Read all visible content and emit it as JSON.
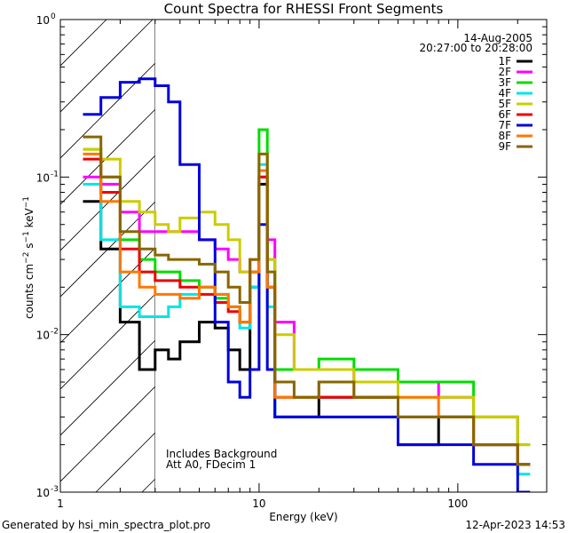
{
  "chart_data": {
    "type": "line",
    "title": "Count Spectra for RHESSI Front Segments",
    "xlabel": "Energy (keV)",
    "ylabel_parts": [
      "counts cm",
      "−2",
      " s",
      "−1",
      " keV",
      "−1"
    ],
    "x_scale": "log",
    "y_scale": "log",
    "xlim": [
      1,
      280
    ],
    "ylim": [
      0.001,
      1
    ],
    "x_tick_labels": [
      "1",
      "10",
      "100"
    ],
    "y_tick_labels": [
      {
        "mantissa": "10",
        "exponent": "0",
        "value": 1
      },
      {
        "mantissa": "10",
        "exponent": "-1",
        "value": 0.1
      },
      {
        "mantissa": "10",
        "exponent": "-2",
        "value": 0.01
      },
      {
        "mantissa": "10",
        "exponent": "-3",
        "value": 0.001
      }
    ],
    "date": "14-Aug-2005",
    "time_range": "20:27:00 to 20:28:00",
    "shaded_region_max_energy": 3,
    "annotation_lines": [
      "Includes Background",
      "Att A0, FDecim 1"
    ],
    "footer_left": "Generated by hsi_min_spectra_plot.pro",
    "footer_right": "12-Apr-2023 14:53",
    "series": [
      {
        "name": "1F",
        "color": "#000000",
        "x": [
          1.3,
          1.6,
          2,
          2.5,
          3,
          3.5,
          4,
          5,
          6,
          7,
          8,
          9,
          10,
          11,
          12,
          15,
          20,
          30,
          50,
          80,
          120,
          200
        ],
        "y": [
          0.07,
          0.035,
          0.012,
          0.006,
          0.008,
          0.007,
          0.009,
          0.012,
          0.011,
          0.008,
          0.006,
          0.02,
          0.09,
          0.02,
          0.003,
          0.003,
          0.004,
          0.004,
          0.002,
          0.003,
          0.002,
          0.0015
        ]
      },
      {
        "name": "2F",
        "color": "#ff00ff",
        "x": [
          1.3,
          1.6,
          2,
          2.5,
          3,
          3.5,
          4,
          5,
          6,
          7,
          8,
          9,
          10,
          11,
          12,
          15,
          20,
          30,
          50,
          80,
          120,
          200
        ],
        "y": [
          0.1,
          0.09,
          0.06,
          0.045,
          0.045,
          0.045,
          0.045,
          0.04,
          0.035,
          0.03,
          0.025,
          0.03,
          0.1,
          0.04,
          0.012,
          0.006,
          0.006,
          0.005,
          0.005,
          0.004,
          0.003,
          0.0015
        ]
      },
      {
        "name": "3F",
        "color": "#00dd00",
        "x": [
          1.3,
          1.6,
          2,
          2.5,
          3,
          3.5,
          4,
          5,
          6,
          7,
          8,
          9,
          10,
          11,
          12,
          15,
          20,
          30,
          50,
          80,
          120,
          200
        ],
        "y": [
          0.15,
          0.1,
          0.04,
          0.03,
          0.025,
          0.025,
          0.022,
          0.02,
          0.017,
          0.015,
          0.012,
          0.025,
          0.2,
          0.03,
          0.006,
          0.006,
          0.007,
          0.006,
          0.005,
          0.005,
          0.003,
          0.002
        ]
      },
      {
        "name": "4F",
        "color": "#00e5e5",
        "x": [
          1.3,
          1.6,
          2,
          2.5,
          3,
          3.5,
          4,
          5,
          6,
          7,
          8,
          9,
          10,
          11,
          12,
          15,
          20,
          30,
          50,
          80,
          120,
          200
        ],
        "y": [
          0.09,
          0.04,
          0.015,
          0.013,
          0.013,
          0.015,
          0.018,
          0.02,
          0.018,
          0.015,
          0.011,
          0.02,
          0.12,
          0.015,
          0.003,
          0.003,
          0.003,
          0.003,
          0.003,
          0.003,
          0.002,
          0.0013
        ]
      },
      {
        "name": "5F",
        "color": "#cccc00",
        "x": [
          1.3,
          1.6,
          2,
          2.5,
          3,
          3.5,
          4,
          5,
          6,
          7,
          8,
          9,
          10,
          11,
          12,
          15,
          20,
          30,
          50,
          80,
          120,
          200
        ],
        "y": [
          0.15,
          0.13,
          0.07,
          0.06,
          0.05,
          0.045,
          0.055,
          0.06,
          0.05,
          0.04,
          0.025,
          0.03,
          0.14,
          0.03,
          0.01,
          0.006,
          0.006,
          0.005,
          0.004,
          0.004,
          0.003,
          0.002
        ]
      },
      {
        "name": "6F",
        "color": "#ee0000",
        "x": [
          1.3,
          1.6,
          2,
          2.5,
          3,
          3.5,
          4,
          5,
          6,
          7,
          8,
          9,
          10,
          11,
          12,
          15,
          20,
          30,
          50,
          80,
          120,
          200
        ],
        "y": [
          0.13,
          0.08,
          0.035,
          0.025,
          0.022,
          0.022,
          0.02,
          0.018,
          0.016,
          0.014,
          0.012,
          0.025,
          0.1,
          0.02,
          0.004,
          0.004,
          0.004,
          0.004,
          0.003,
          0.003,
          0.002,
          0.0015
        ]
      },
      {
        "name": "7F",
        "color": "#0000dd",
        "x": [
          1.3,
          1.6,
          2,
          2.5,
          3,
          3.5,
          4,
          5,
          6,
          7,
          8,
          9,
          10,
          11,
          12,
          15,
          20,
          30,
          50,
          80,
          120,
          200
        ],
        "y": [
          0.25,
          0.32,
          0.4,
          0.42,
          0.38,
          0.3,
          0.12,
          0.04,
          0.012,
          0.005,
          0.004,
          0.006,
          0.05,
          0.006,
          0.003,
          0.003,
          0.003,
          0.003,
          0.002,
          0.002,
          0.0015,
          0.001
        ]
      },
      {
        "name": "8F",
        "color": "#ff7700",
        "x": [
          1.3,
          1.6,
          2,
          2.5,
          3,
          3.5,
          4,
          5,
          6,
          7,
          8,
          9,
          10,
          11,
          12,
          15,
          20,
          30,
          50,
          80,
          120,
          200
        ],
        "y": [
          0.14,
          0.07,
          0.025,
          0.02,
          0.018,
          0.018,
          0.017,
          0.02,
          0.018,
          0.015,
          0.012,
          0.025,
          0.11,
          0.02,
          0.004,
          0.004,
          0.005,
          0.004,
          0.004,
          0.003,
          0.002,
          0.0015
        ]
      },
      {
        "name": "9F",
        "color": "#886600",
        "x": [
          1.3,
          1.6,
          2,
          2.5,
          3,
          3.5,
          4,
          5,
          6,
          7,
          8,
          9,
          10,
          11,
          12,
          15,
          20,
          30,
          50,
          80,
          120,
          200
        ],
        "y": [
          0.18,
          0.1,
          0.045,
          0.035,
          0.032,
          0.03,
          0.03,
          0.028,
          0.025,
          0.02,
          0.016,
          0.03,
          0.14,
          0.025,
          0.005,
          0.004,
          0.005,
          0.004,
          0.003,
          0.003,
          0.002,
          0.0015
        ]
      }
    ]
  }
}
